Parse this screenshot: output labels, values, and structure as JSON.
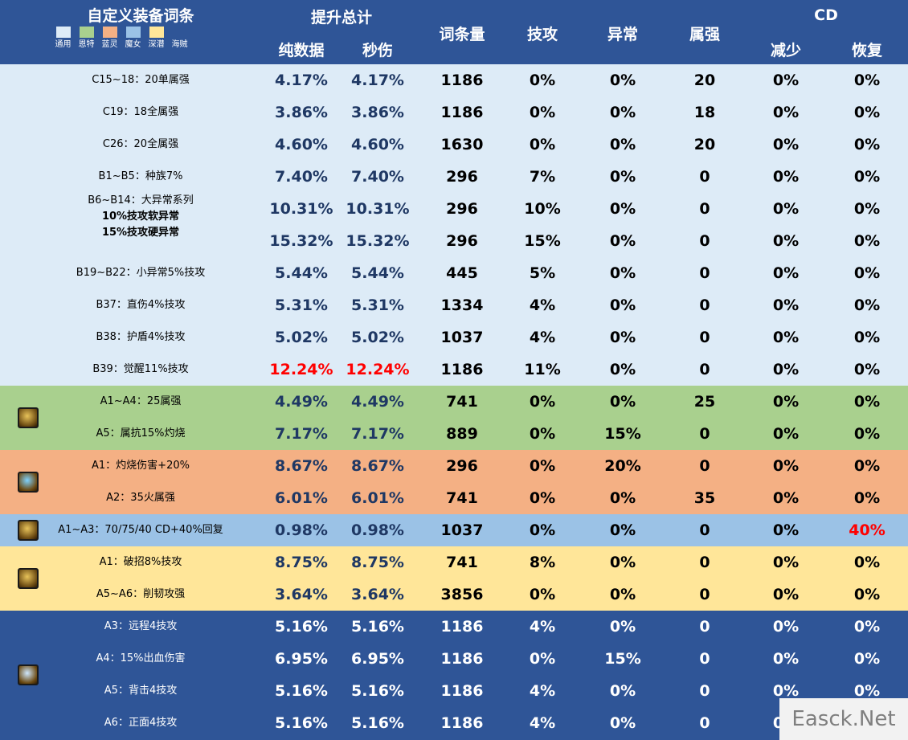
{
  "header": {
    "title": "自定义装备词条",
    "legend": [
      {
        "label": "通用",
        "color": "#ddebf7"
      },
      {
        "label": "恩特",
        "color": "#a9d08e"
      },
      {
        "label": "蓝灵",
        "color": "#f4b084"
      },
      {
        "label": "魔女",
        "color": "#9bc2e6"
      },
      {
        "label": "深潜",
        "color": "#ffe699"
      },
      {
        "label": "海贼",
        "color": "#2f5597"
      }
    ],
    "group_total": "提升总计",
    "col_pure": "纯数据",
    "col_sec": "秒伤",
    "col_count": "词条量",
    "col_atk": "技攻",
    "col_abn": "异常",
    "col_ele": "属强",
    "group_cd": "CD",
    "col_reduce": "减少",
    "col_recover": "恢复"
  },
  "colors": {
    "general": "#ddebf7",
    "ent": "#a9d08e",
    "blue": "#f4b084",
    "witch": "#9bc2e6",
    "deep": "#ffe699",
    "pirate": "#2f5597",
    "highlight": "#ff0000",
    "value_dark": "#1f3864"
  },
  "rows": [
    {
      "group": "general",
      "name": "C15~18：20单属强",
      "pure": "4.17%",
      "sec": "4.17%",
      "count": "1186",
      "atk": "0%",
      "abn": "0%",
      "ele": "20",
      "red": "0%",
      "rec": "0%"
    },
    {
      "group": "general",
      "name": "C19：18全属强",
      "pure": "3.86%",
      "sec": "3.86%",
      "count": "1186",
      "atk": "0%",
      "abn": "0%",
      "ele": "18",
      "red": "0%",
      "rec": "0%"
    },
    {
      "group": "general",
      "name": "C26：20全属强",
      "pure": "4.60%",
      "sec": "4.60%",
      "count": "1630",
      "atk": "0%",
      "abn": "0%",
      "ele": "20",
      "red": "0%",
      "rec": "0%"
    },
    {
      "group": "general",
      "name": "B1~B5：种族7%",
      "pure": "7.40%",
      "sec": "7.40%",
      "count": "296",
      "atk": "7%",
      "abn": "0%",
      "ele": "0",
      "red": "0%",
      "rec": "0%"
    },
    {
      "group": "general",
      "name": "B6~B14：大异常系列",
      "name2": "10%技攻软异常",
      "pure": "10.31%",
      "sec": "10.31%",
      "count": "296",
      "atk": "10%",
      "abn": "0%",
      "ele": "0",
      "red": "0%",
      "rec": "0%"
    },
    {
      "group": "general",
      "name": "15%技攻硬异常",
      "pure": "15.32%",
      "sec": "15.32%",
      "count": "296",
      "atk": "15%",
      "abn": "0%",
      "ele": "0",
      "red": "0%",
      "rec": "0%",
      "bold": true
    },
    {
      "group": "general",
      "name": "B19~B22：小异常5%技攻",
      "pure": "5.44%",
      "sec": "5.44%",
      "count": "445",
      "atk": "5%",
      "abn": "0%",
      "ele": "0",
      "red": "0%",
      "rec": "0%"
    },
    {
      "group": "general",
      "name": "B37：直伤4%技攻",
      "pure": "5.31%",
      "sec": "5.31%",
      "count": "1334",
      "atk": "4%",
      "abn": "0%",
      "ele": "0",
      "red": "0%",
      "rec": "0%"
    },
    {
      "group": "general",
      "name": "B38：护盾4%技攻",
      "pure": "5.02%",
      "sec": "5.02%",
      "count": "1037",
      "atk": "4%",
      "abn": "0%",
      "ele": "0",
      "red": "0%",
      "rec": "0%"
    },
    {
      "group": "general",
      "name": "B39：觉醒11%技攻",
      "pure": "12.24%",
      "sec": "12.24%",
      "count": "1186",
      "atk": "11%",
      "abn": "0%",
      "ele": "0",
      "red": "0%",
      "rec": "0%",
      "hl_pure": true
    },
    {
      "group": "ent",
      "name": "A1~A4：25属强",
      "pure": "4.49%",
      "sec": "4.49%",
      "count": "741",
      "atk": "0%",
      "abn": "0%",
      "ele": "25",
      "red": "0%",
      "rec": "0%"
    },
    {
      "group": "ent",
      "name": "A5：属抗15%灼烧",
      "pure": "7.17%",
      "sec": "7.17%",
      "count": "889",
      "atk": "0%",
      "abn": "15%",
      "ele": "0",
      "red": "0%",
      "rec": "0%"
    },
    {
      "group": "blue",
      "name": "A1：灼烧伤害+20%",
      "pure": "8.67%",
      "sec": "8.67%",
      "count": "296",
      "atk": "0%",
      "abn": "20%",
      "ele": "0",
      "red": "0%",
      "rec": "0%"
    },
    {
      "group": "blue",
      "name": "A2：35火属强",
      "pure": "6.01%",
      "sec": "6.01%",
      "count": "741",
      "atk": "0%",
      "abn": "0%",
      "ele": "35",
      "red": "0%",
      "rec": "0%"
    },
    {
      "group": "witch",
      "name": "A1~A3：70/75/40 CD+40%回复",
      "pure": "0.98%",
      "sec": "0.98%",
      "count": "1037",
      "atk": "0%",
      "abn": "0%",
      "ele": "0",
      "red": "0%",
      "rec": "40%",
      "hl_rec": true
    },
    {
      "group": "deep",
      "name": "A1：破招8%技攻",
      "pure": "8.75%",
      "sec": "8.75%",
      "count": "741",
      "atk": "8%",
      "abn": "0%",
      "ele": "0",
      "red": "0%",
      "rec": "0%"
    },
    {
      "group": "deep",
      "name": "A5~A6：削韧攻强",
      "pure": "3.64%",
      "sec": "3.64%",
      "count": "3856",
      "atk": "0%",
      "abn": "0%",
      "ele": "0",
      "red": "0%",
      "rec": "0%"
    },
    {
      "group": "pirate",
      "name": "A3：远程4技攻",
      "pure": "5.16%",
      "sec": "5.16%",
      "count": "1186",
      "atk": "4%",
      "abn": "0%",
      "ele": "0",
      "red": "0%",
      "rec": "0%"
    },
    {
      "group": "pirate",
      "name": "A4：15%出血伤害",
      "pure": "6.95%",
      "sec": "6.95%",
      "count": "1186",
      "atk": "0%",
      "abn": "15%",
      "ele": "0",
      "red": "0%",
      "rec": "0%"
    },
    {
      "group": "pirate",
      "name": "A5：背击4技攻",
      "pure": "5.16%",
      "sec": "5.16%",
      "count": "1186",
      "atk": "4%",
      "abn": "0%",
      "ele": "0",
      "red": "0%",
      "rec": "0%"
    },
    {
      "group": "pirate",
      "name": "A6：正面4技攻",
      "pure": "5.16%",
      "sec": "5.16%",
      "count": "1186",
      "atk": "4%",
      "abn": "0%",
      "ele": "0",
      "red": "0%",
      "rec": "0%"
    }
  ],
  "icons": [
    {
      "group": "ent",
      "name": "ent-set-icon"
    },
    {
      "group": "blue",
      "name": "blue-spirit-set-icon"
    },
    {
      "group": "witch",
      "name": "witch-set-icon"
    },
    {
      "group": "deep",
      "name": "deep-dive-set-icon"
    },
    {
      "group": "pirate",
      "name": "pirate-set-icon"
    }
  ],
  "watermark": "Easck.Net"
}
